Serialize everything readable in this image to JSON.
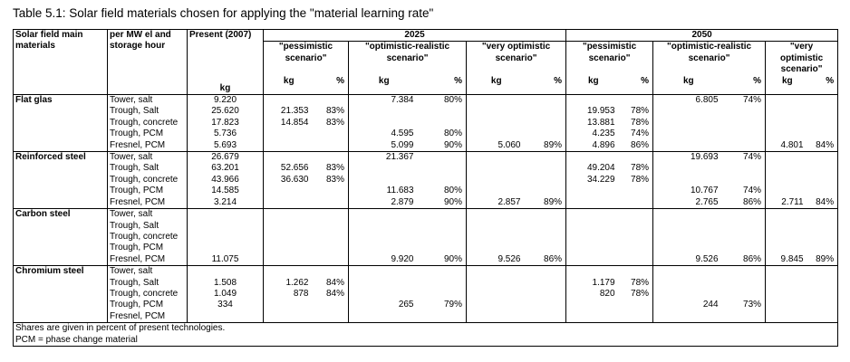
{
  "caption": "Table 5.1: Solar field materials chosen for applying the \"material learning rate\"",
  "header": {
    "col_material": "Solar field main materials",
    "col_per_mw": "per MW el and storage hour",
    "col_present": "Present (2007)",
    "year_2025": "2025",
    "year_2050": "2050",
    "scenario_pessimistic": "\"pessimistic scenario\"",
    "scenario_opt_realistic": "\"optimistic-realistic scenario\"",
    "scenario_very_optimistic": "\"very optimistic scenario\"",
    "unit_kg": "kg",
    "unit_pct": "%"
  },
  "groups": [
    {
      "material": "Flat glas",
      "rows": [
        {
          "tech": "Tower, salt",
          "present": "9.220",
          "p25_kg": "",
          "p25_pct": "",
          "or25_kg": "7.384",
          "or25_pct": "80%",
          "vo25_kg": "",
          "vo25_pct": "",
          "p50_kg": "",
          "p50_pct": "",
          "or50_kg": "6.805",
          "or50_pct": "74%",
          "vo50_kg": "",
          "vo50_pct": ""
        },
        {
          "tech": "Trough, Salt",
          "present": "25.620",
          "p25_kg": "21.353",
          "p25_pct": "83%",
          "or25_kg": "",
          "or25_pct": "",
          "vo25_kg": "",
          "vo25_pct": "",
          "p50_kg": "19.953",
          "p50_pct": "78%",
          "or50_kg": "",
          "or50_pct": "",
          "vo50_kg": "",
          "vo50_pct": ""
        },
        {
          "tech": "Trough, concrete",
          "present": "17.823",
          "p25_kg": "14.854",
          "p25_pct": "83%",
          "or25_kg": "",
          "or25_pct": "",
          "vo25_kg": "",
          "vo25_pct": "",
          "p50_kg": "13.881",
          "p50_pct": "78%",
          "or50_kg": "",
          "or50_pct": "",
          "vo50_kg": "",
          "vo50_pct": ""
        },
        {
          "tech": "Trough, PCM",
          "present": "5.736",
          "p25_kg": "",
          "p25_pct": "",
          "or25_kg": "4.595",
          "or25_pct": "80%",
          "vo25_kg": "",
          "vo25_pct": "",
          "p50_kg": "4.235",
          "p50_pct": "74%",
          "or50_kg": "",
          "or50_pct": "",
          "vo50_kg": "",
          "vo50_pct": ""
        },
        {
          "tech": "Fresnel, PCM",
          "present": "5.693",
          "p25_kg": "",
          "p25_pct": "",
          "or25_kg": "5.099",
          "or25_pct": "90%",
          "vo25_kg": "5.060",
          "vo25_pct": "89%",
          "p50_kg": "4.896",
          "p50_pct": "86%",
          "or50_kg": "",
          "or50_pct": "",
          "vo50_kg": "4.801",
          "vo50_pct": "84%"
        }
      ]
    },
    {
      "material": "Reinforced steel",
      "rows": [
        {
          "tech": "Tower, salt",
          "present": "26.679",
          "p25_kg": "",
          "p25_pct": "",
          "or25_kg": "21.367",
          "or25_pct": "",
          "vo25_kg": "",
          "vo25_pct": "",
          "p50_kg": "",
          "p50_pct": "",
          "or50_kg": "19.693",
          "or50_pct": "74%",
          "vo50_kg": "",
          "vo50_pct": ""
        },
        {
          "tech": "Trough, Salt",
          "present": "63.201",
          "p25_kg": "52.656",
          "p25_pct": "83%",
          "or25_kg": "",
          "or25_pct": "",
          "vo25_kg": "",
          "vo25_pct": "",
          "p50_kg": "49.204",
          "p50_pct": "78%",
          "or50_kg": "",
          "or50_pct": "",
          "vo50_kg": "",
          "vo50_pct": ""
        },
        {
          "tech": "Trough, concrete",
          "present": "43.966",
          "p25_kg": "36.630",
          "p25_pct": "83%",
          "or25_kg": "",
          "or25_pct": "",
          "vo25_kg": "",
          "vo25_pct": "",
          "p50_kg": "34.229",
          "p50_pct": "78%",
          "or50_kg": "",
          "or50_pct": "",
          "vo50_kg": "",
          "vo50_pct": ""
        },
        {
          "tech": "Trough, PCM",
          "present": "14.585",
          "p25_kg": "",
          "p25_pct": "",
          "or25_kg": "11.683",
          "or25_pct": "80%",
          "vo25_kg": "",
          "vo25_pct": "",
          "p50_kg": "",
          "p50_pct": "",
          "or50_kg": "10.767",
          "or50_pct": "74%",
          "vo50_kg": "",
          "vo50_pct": ""
        },
        {
          "tech": "Fresnel, PCM",
          "present": "3.214",
          "p25_kg": "",
          "p25_pct": "",
          "or25_kg": "2.879",
          "or25_pct": "90%",
          "vo25_kg": "2.857",
          "vo25_pct": "89%",
          "p50_kg": "",
          "p50_pct": "",
          "or50_kg": "2.765",
          "or50_pct": "86%",
          "vo50_kg": "2.711",
          "vo50_pct": "84%"
        }
      ]
    },
    {
      "material": "Carbon steel",
      "rows": [
        {
          "tech": "Tower, salt",
          "present": "",
          "p25_kg": "",
          "p25_pct": "",
          "or25_kg": "",
          "or25_pct": "",
          "vo25_kg": "",
          "vo25_pct": "",
          "p50_kg": "",
          "p50_pct": "",
          "or50_kg": "",
          "or50_pct": "",
          "vo50_kg": "",
          "vo50_pct": ""
        },
        {
          "tech": "Trough, Salt",
          "present": "",
          "p25_kg": "",
          "p25_pct": "",
          "or25_kg": "",
          "or25_pct": "",
          "vo25_kg": "",
          "vo25_pct": "",
          "p50_kg": "",
          "p50_pct": "",
          "or50_kg": "",
          "or50_pct": "",
          "vo50_kg": "",
          "vo50_pct": ""
        },
        {
          "tech": "Trough, concrete",
          "present": "",
          "p25_kg": "",
          "p25_pct": "",
          "or25_kg": "",
          "or25_pct": "",
          "vo25_kg": "",
          "vo25_pct": "",
          "p50_kg": "",
          "p50_pct": "",
          "or50_kg": "",
          "or50_pct": "",
          "vo50_kg": "",
          "vo50_pct": ""
        },
        {
          "tech": "Trough, PCM",
          "present": "",
          "p25_kg": "",
          "p25_pct": "",
          "or25_kg": "",
          "or25_pct": "",
          "vo25_kg": "",
          "vo25_pct": "",
          "p50_kg": "",
          "p50_pct": "",
          "or50_kg": "",
          "or50_pct": "",
          "vo50_kg": "",
          "vo50_pct": ""
        },
        {
          "tech": "Fresnel, PCM",
          "present": "11.075",
          "p25_kg": "",
          "p25_pct": "",
          "or25_kg": "9.920",
          "or25_pct": "90%",
          "vo25_kg": "9.526",
          "vo25_pct": "86%",
          "p50_kg": "",
          "p50_pct": "",
          "or50_kg": "9.526",
          "or50_pct": "86%",
          "vo50_kg": "9.845",
          "vo50_pct": "89%"
        }
      ]
    },
    {
      "material": "Chromium steel",
      "rows": [
        {
          "tech": "Tower, salt",
          "present": "",
          "p25_kg": "",
          "p25_pct": "",
          "or25_kg": "",
          "or25_pct": "",
          "vo25_kg": "",
          "vo25_pct": "",
          "p50_kg": "",
          "p50_pct": "",
          "or50_kg": "",
          "or50_pct": "",
          "vo50_kg": "",
          "vo50_pct": ""
        },
        {
          "tech": "Trough, Salt",
          "present": "1.508",
          "p25_kg": "1.262",
          "p25_pct": "84%",
          "or25_kg": "",
          "or25_pct": "",
          "vo25_kg": "",
          "vo25_pct": "",
          "p50_kg": "1.179",
          "p50_pct": "78%",
          "or50_kg": "",
          "or50_pct": "",
          "vo50_kg": "",
          "vo50_pct": ""
        },
        {
          "tech": "Trough, concrete",
          "present": "1.049",
          "p25_kg": "878",
          "p25_pct": "84%",
          "or25_kg": "",
          "or25_pct": "",
          "vo25_kg": "",
          "vo25_pct": "",
          "p50_kg": "820",
          "p50_pct": "78%",
          "or50_kg": "",
          "or50_pct": "",
          "vo50_kg": "",
          "vo50_pct": ""
        },
        {
          "tech": "Trough, PCM",
          "present": "334",
          "p25_kg": "",
          "p25_pct": "",
          "or25_kg": "265",
          "or25_pct": "79%",
          "vo25_kg": "",
          "vo25_pct": "",
          "p50_kg": "",
          "p50_pct": "",
          "or50_kg": "244",
          "or50_pct": "73%",
          "vo50_kg": "",
          "vo50_pct": ""
        },
        {
          "tech": "Fresnel, PCM",
          "present": "",
          "p25_kg": "",
          "p25_pct": "",
          "or25_kg": "",
          "or25_pct": "",
          "vo25_kg": "",
          "vo25_pct": "",
          "p50_kg": "",
          "p50_pct": "",
          "or50_kg": "",
          "or50_pct": "",
          "vo50_kg": "",
          "vo50_pct": ""
        }
      ]
    }
  ],
  "notes": [
    "Shares are given in percent of present technologies.",
    "PCM = phase change material"
  ]
}
